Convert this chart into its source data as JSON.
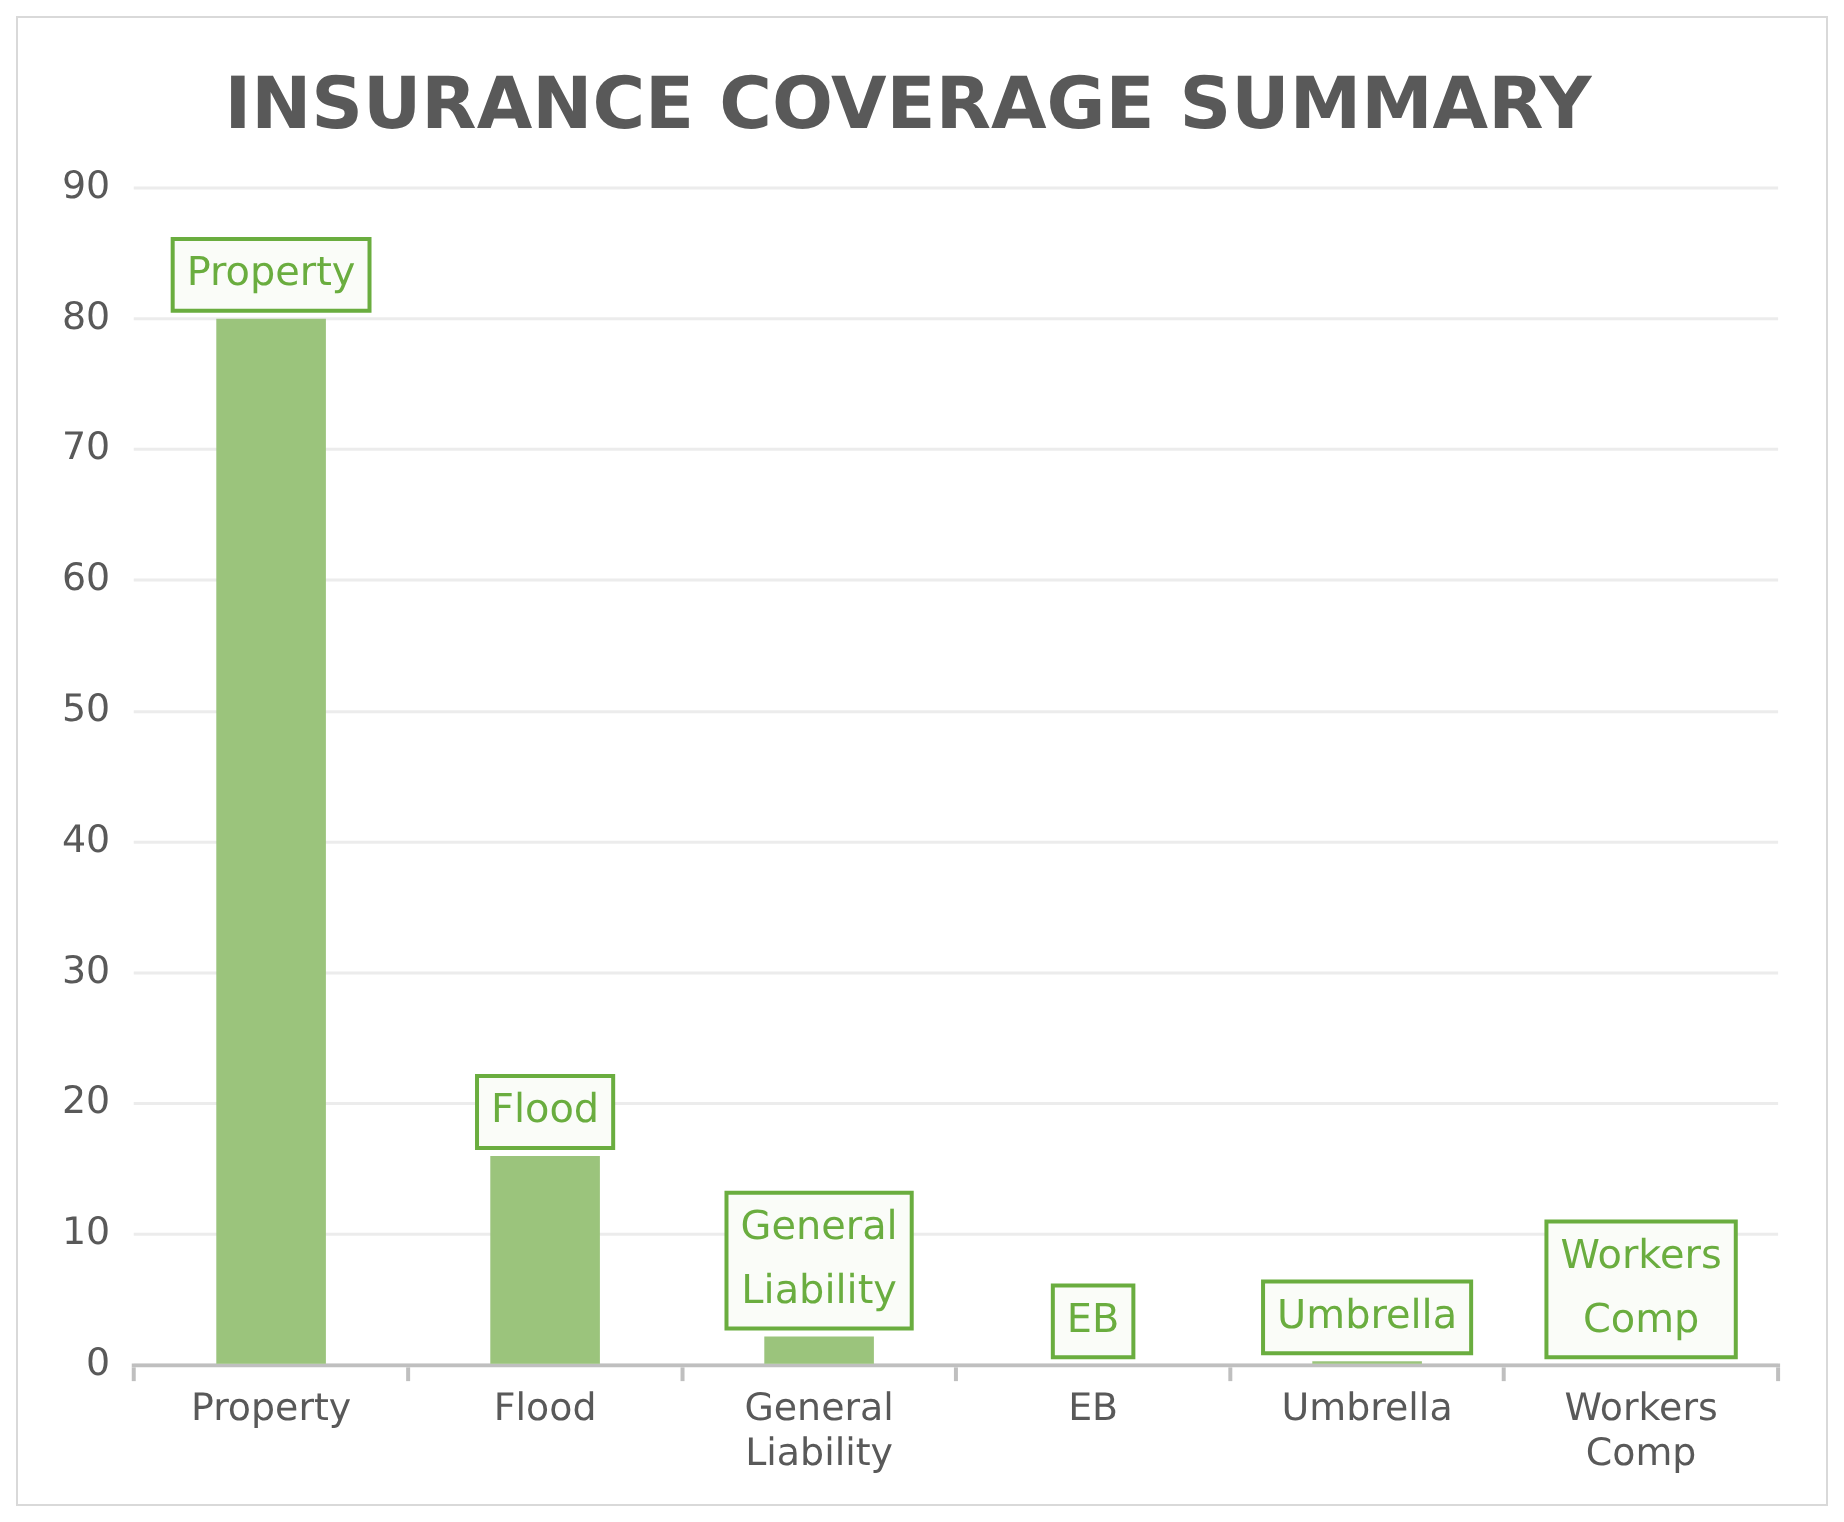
{
  "chart_data": {
    "type": "bar",
    "title": "INSURANCE COVERAGE SUMMARY",
    "categories": [
      "Property",
      "Flood",
      "General Liability",
      "EB",
      "Umbrella",
      "Workers Comp"
    ],
    "values": [
      80,
      16,
      2.2,
      0,
      0.3,
      0
    ],
    "color": "#9bc47c",
    "ylim": [
      0,
      90
    ],
    "yticks": [
      0,
      10,
      20,
      30,
      40,
      50,
      60,
      70,
      80,
      90
    ],
    "grid": "y",
    "annotations": [
      {
        "text": "Property",
        "x": "Property",
        "y": 80
      },
      {
        "text": "Flood",
        "x": "Flood",
        "y": 16
      },
      {
        "text": "General Liability",
        "x": "General Liability",
        "y": 2.2
      },
      {
        "text": "EB",
        "x": "EB",
        "y": 0
      },
      {
        "text": "Umbrella",
        "x": "Umbrella",
        "y": 0.3
      },
      {
        "text": "Workers Comp",
        "x": "Workers Comp",
        "y": 0
      }
    ]
  }
}
